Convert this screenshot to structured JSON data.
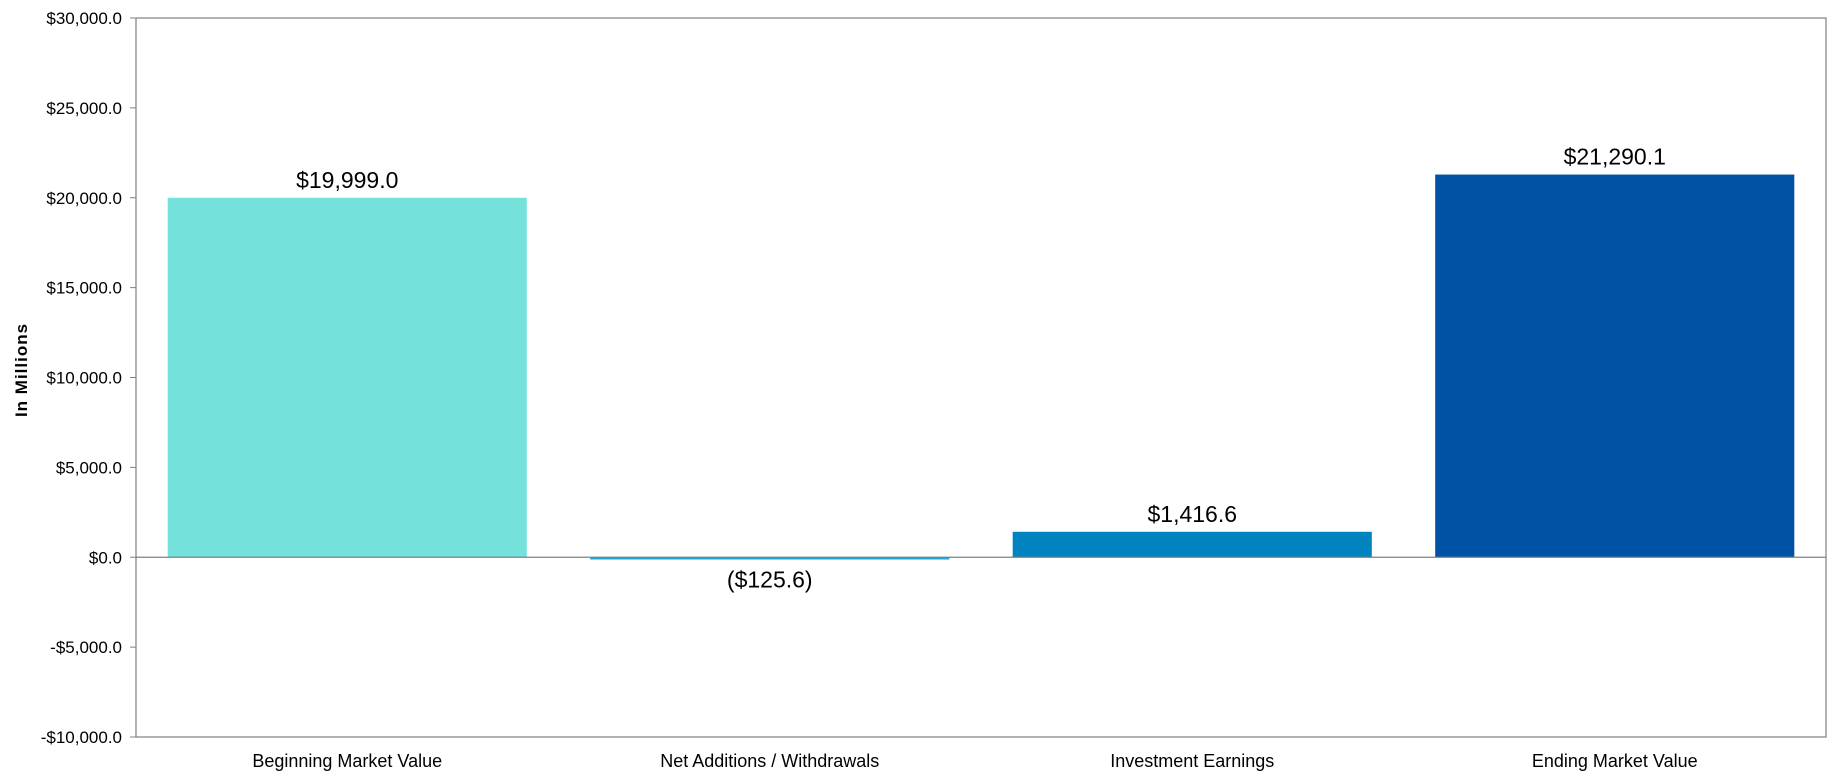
{
  "chart_data": {
    "type": "bar",
    "title": "",
    "xlabel": "",
    "ylabel": "In Millions",
    "ylim": [
      -10000,
      30000
    ],
    "yticks": [
      -10000,
      -5000,
      0,
      5000,
      10000,
      15000,
      20000,
      25000,
      30000
    ],
    "ytick_labels": [
      "-$10,000.0",
      "-$5,000.0",
      "$0.0",
      "$5,000.0",
      "$10,000.0",
      "$15,000.0",
      "$20,000.0",
      "$25,000.0",
      "$30,000.0"
    ],
    "categories": [
      "Beginning Market Value",
      "Net Additions / Withdrawals",
      "Investment Earnings",
      "Ending Market Value"
    ],
    "values": [
      19999.0,
      -125.6,
      1416.6,
      21290.1
    ],
    "data_labels": [
      "$19,999.0",
      "($125.6)",
      "$1,416.6",
      "$21,290.1"
    ],
    "colors": [
      "#74e2da",
      "#1fa8d2",
      "#0083bf",
      "#0052a5"
    ],
    "grid": false,
    "legend": "none"
  }
}
